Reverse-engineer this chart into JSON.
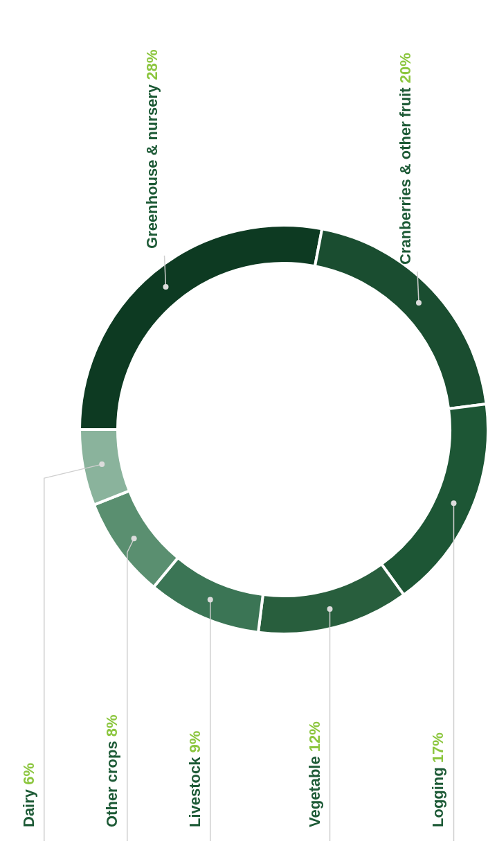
{
  "chart_data": {
    "type": "donut",
    "categories": [
      "Greenhouse & nursery",
      "Cranberries & other fruit",
      "Logging",
      "Vegetable",
      "Livestock",
      "Other crops",
      "Dairy"
    ],
    "values": [
      28,
      20,
      17,
      12,
      9,
      8,
      6
    ],
    "value_labels": [
      "28%",
      "20%",
      "17%",
      "12%",
      "9%",
      "8%",
      "6%"
    ],
    "colors": [
      "#0d3a22",
      "#1a4d30",
      "#1d5635",
      "#285e3d",
      "#3b7555",
      "#5a8f70",
      "#8ab39c"
    ]
  }
}
